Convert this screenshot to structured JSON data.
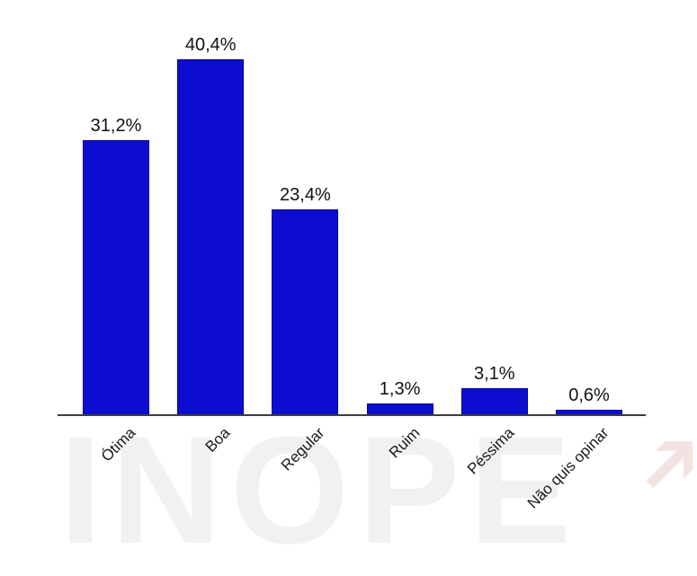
{
  "chart_data": {
    "type": "bar",
    "categories": [
      "Ótima",
      "Boa",
      "Regular",
      "Ruim",
      "Péssima",
      "Não quis opinar"
    ],
    "values": [
      31.2,
      40.4,
      23.4,
      1.3,
      3.1,
      0.6
    ],
    "value_labels": [
      "31,2%",
      "40,4%",
      "23,4%",
      "1,3%",
      "3,1%",
      "0,6%"
    ],
    "title": "",
    "xlabel": "",
    "ylabel": "",
    "ylim": [
      0,
      45
    ],
    "grid": false,
    "legend": false,
    "bar_color": "#0d0dd0",
    "bar_border_color": "#0000a0",
    "axis_color": "#3d3d3d"
  },
  "watermark": {
    "text": "INOPE",
    "arrow_icon": "➔"
  }
}
